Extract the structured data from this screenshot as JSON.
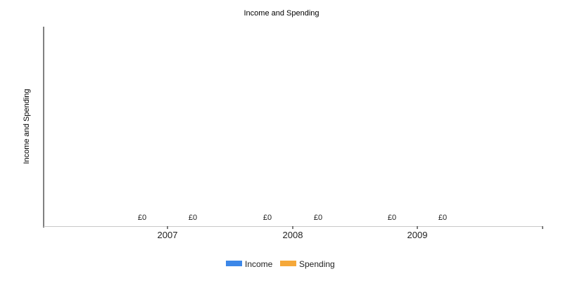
{
  "chart_data": {
    "type": "bar",
    "title": "Income and Spending",
    "xlabel": "",
    "ylabel": "Income and Spending",
    "categories": [
      "2007",
      "2008",
      "2009"
    ],
    "series": [
      {
        "name": "Income",
        "values": [
          0,
          0,
          0
        ],
        "labels": [
          "£0",
          "£0",
          "£0"
        ],
        "color": "#3c87e8"
      },
      {
        "name": "Spending",
        "values": [
          0,
          0,
          0
        ],
        "labels": [
          "£0",
          "£0",
          "£0"
        ],
        "color": "#f5a83a"
      }
    ],
    "grid": false,
    "legend": "bottom"
  }
}
